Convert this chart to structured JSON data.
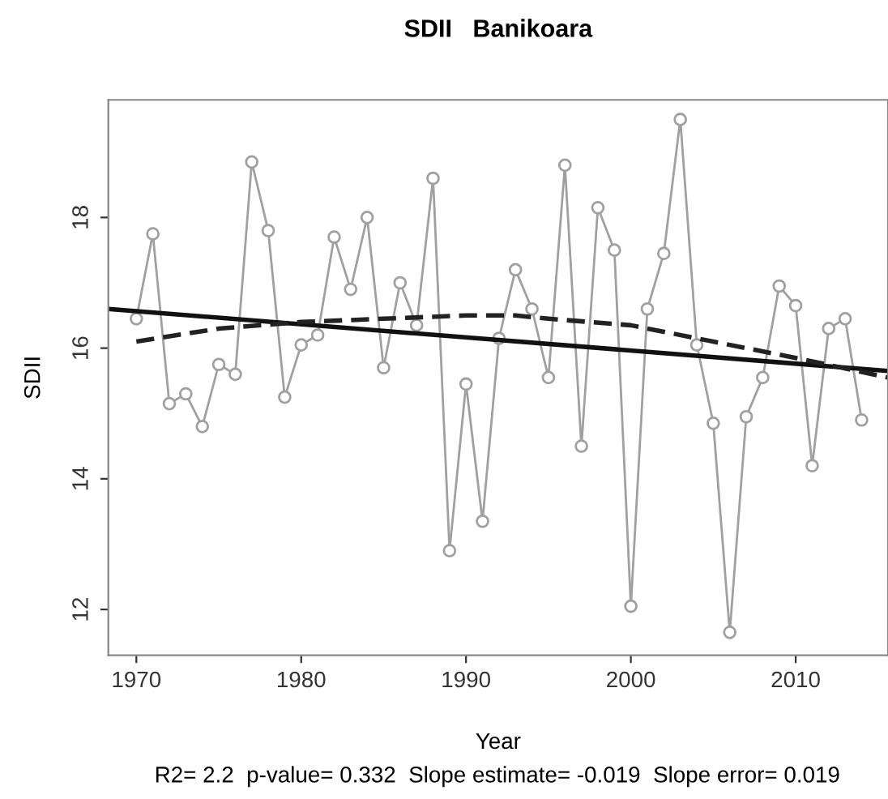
{
  "chart_data": {
    "type": "line",
    "title": "SDII   Banikoara",
    "xlabel": "Year",
    "ylabel": "SDII",
    "annotations": [
      "R2= 2.2  p-value= 0.332  Slope estimate= -0.019  Slope error= 0.019"
    ],
    "xlim": [
      1968.3,
      2015.6
    ],
    "ylim": [
      11.3,
      19.8
    ],
    "xticks": [
      1970,
      1980,
      1990,
      2000,
      2010
    ],
    "yticks": [
      12,
      14,
      16,
      18
    ],
    "grid": false,
    "legend": false,
    "series": [
      {
        "color": "#a0a0a0",
        "marker": "circle",
        "line_style": "solid",
        "x": [
          1970,
          1971,
          1972,
          1973,
          1974,
          1975,
          1976,
          1977,
          1978,
          1979,
          1980,
          1981,
          1982,
          1983,
          1984,
          1985,
          1986,
          1987,
          1988,
          1989,
          1990,
          1991,
          1992,
          1993,
          1994,
          1995,
          1996,
          1997,
          1998,
          1999,
          2000,
          2001,
          2002,
          2003,
          2004,
          2005,
          2006,
          2007,
          2008,
          2009,
          2010,
          2011,
          2012,
          2013,
          2014
        ],
        "values": [
          16.45,
          17.75,
          15.15,
          15.3,
          14.8,
          15.75,
          15.6,
          18.85,
          17.8,
          15.25,
          16.05,
          16.2,
          17.7,
          16.9,
          18.0,
          15.7,
          17.0,
          16.35,
          18.6,
          12.9,
          15.45,
          13.35,
          16.15,
          17.2,
          16.6,
          15.55,
          18.8,
          14.5,
          18.15,
          17.5,
          12.05,
          16.6,
          17.45,
          19.5,
          16.05,
          14.85,
          11.65,
          14.95,
          15.55,
          16.95,
          16.65,
          14.2,
          16.3,
          16.45,
          14.9
        ]
      },
      {
        "color": "#111111",
        "marker": "none",
        "line_style": "solid",
        "x": [
          1968.3,
          2015.6
        ],
        "values": [
          16.6,
          15.65
        ]
      },
      {
        "color": "#222222",
        "marker": "none",
        "line_style": "dashed",
        "x": [
          1970,
          1975,
          1980,
          1985,
          1990,
          1993,
          1995,
          2000,
          2005,
          2010,
          2015.6
        ],
        "values": [
          16.1,
          16.3,
          16.4,
          16.45,
          16.5,
          16.5,
          16.45,
          16.35,
          16.1,
          15.85,
          15.55
        ]
      }
    ]
  }
}
